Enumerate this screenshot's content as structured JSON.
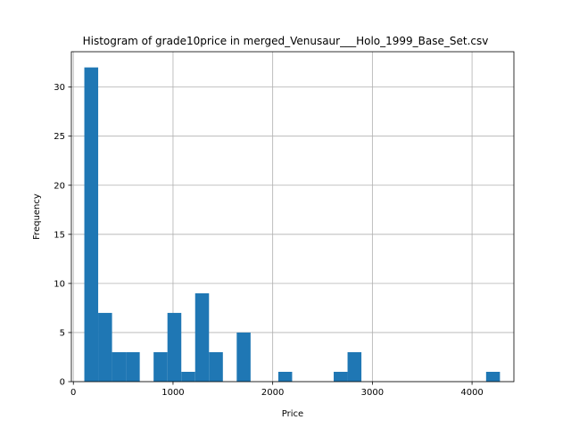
{
  "chart_data": {
    "type": "bar",
    "title": "Histogram of grade10price in merged_Venusaur___Holo_1999_Base_Set.csv",
    "xlabel": "Price",
    "ylabel": "Frequency",
    "xlim": [
      -20,
      4420
    ],
    "ylim": [
      0,
      33.6
    ],
    "grid": true,
    "bar_color": "#1f77b4",
    "x_ticks": [
      0,
      1000,
      2000,
      3000,
      4000
    ],
    "y_ticks": [
      0,
      5,
      10,
      15,
      20,
      25,
      30
    ],
    "bins": [
      {
        "x0": 110,
        "x1": 249,
        "count": 32
      },
      {
        "x0": 249,
        "x1": 388,
        "count": 7
      },
      {
        "x0": 388,
        "x1": 527,
        "count": 3
      },
      {
        "x0": 527,
        "x1": 666,
        "count": 3
      },
      {
        "x0": 805,
        "x1": 944,
        "count": 3
      },
      {
        "x0": 944,
        "x1": 1083,
        "count": 7
      },
      {
        "x0": 1083,
        "x1": 1222,
        "count": 1
      },
      {
        "x0": 1222,
        "x1": 1361,
        "count": 9
      },
      {
        "x0": 1361,
        "x1": 1500,
        "count": 3
      },
      {
        "x0": 1639,
        "x1": 1778,
        "count": 5
      },
      {
        "x0": 2056,
        "x1": 2195,
        "count": 1
      },
      {
        "x0": 2612,
        "x1": 2751,
        "count": 1
      },
      {
        "x0": 2751,
        "x1": 2890,
        "count": 3
      },
      {
        "x0": 4141,
        "x1": 4280,
        "count": 1
      }
    ]
  }
}
